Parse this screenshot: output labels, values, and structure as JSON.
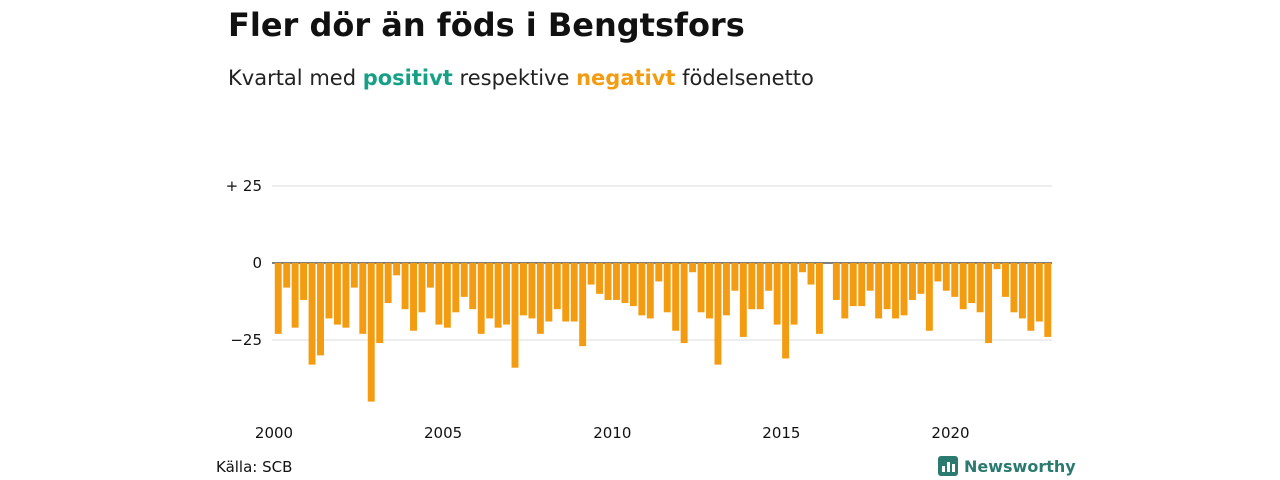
{
  "header": {
    "title": "Fler dör än föds i Bengtsfors",
    "subtitle_prefix": "Kvartal med",
    "subtitle_positive": "positivt",
    "subtitle_middle": "respektive",
    "subtitle_negative": "negativt",
    "subtitle_suffix": "födelsenetto"
  },
  "footer": {
    "source": "Källa: SCB",
    "brand": "Newsworthy"
  },
  "colors": {
    "positive": "#16a085",
    "negative": "#f39c12",
    "grid": "#dddddd",
    "zero_line": "#333333"
  },
  "chart_data": {
    "type": "bar",
    "x_unit": "quarter",
    "x_start": "2000 Q1",
    "ylim": [
      -45,
      25
    ],
    "yticks": [
      25,
      0,
      -25
    ],
    "ytick_labels": [
      "+ 25",
      "0",
      "−25"
    ],
    "xtick_labels": [
      "2000",
      "2005",
      "2010",
      "2015",
      "2020"
    ],
    "xtick_positions": [
      2000,
      2005,
      2010,
      2015,
      2020
    ],
    "grid": true,
    "legend": "none",
    "values": [
      -23,
      -8,
      -21,
      -12,
      -33,
      -30,
      -18,
      -20,
      -21,
      -8,
      -23,
      -45,
      -26,
      -13,
      -4,
      -15,
      -22,
      -16,
      -8,
      -20,
      -21,
      -16,
      -11,
      -15,
      -23,
      -18,
      -21,
      -20,
      -34,
      -17,
      -18,
      -23,
      -19,
      -15,
      -19,
      -19,
      -27,
      -7,
      -10,
      -12,
      -12,
      -13,
      -14,
      -17,
      -18,
      -6,
      -16,
      -22,
      -26,
      -3,
      -16,
      -18,
      -33,
      -17,
      -9,
      -24,
      -15,
      -15,
      -9,
      -20,
      -31,
      -20,
      -3,
      -7,
      -23,
      0,
      -12,
      -18,
      -14,
      -14,
      -9,
      -18,
      -15,
      -18,
      -17,
      -12,
      -10,
      -22,
      -6,
      -9,
      -11,
      -15,
      -13,
      -16,
      -26,
      -2,
      -11,
      -16,
      -18,
      -22,
      -19,
      -24
    ]
  }
}
